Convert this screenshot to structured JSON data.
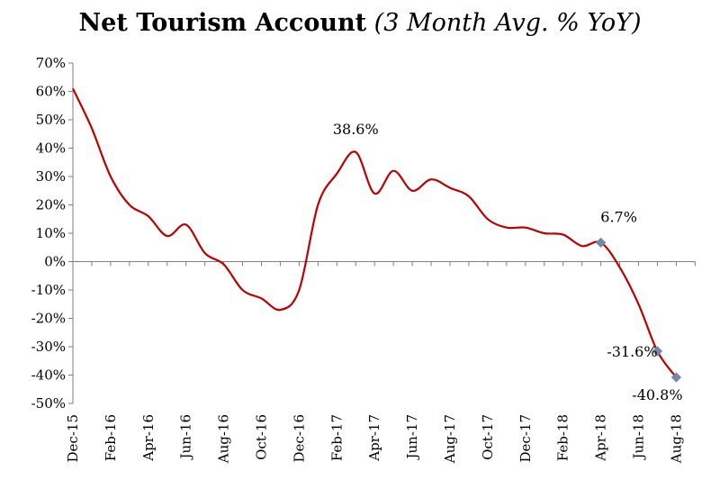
{
  "chart_data": {
    "type": "line",
    "title": "Net Tourism Account",
    "subtitle": "(3 Month Avg. % YoY)",
    "xlabel": "",
    "ylabel": "",
    "ylim": [
      -50,
      70
    ],
    "yticks": [
      -50,
      -40,
      -30,
      -20,
      -10,
      0,
      10,
      20,
      30,
      40,
      50,
      60,
      70
    ],
    "ytick_labels": [
      "-50%",
      "-40%",
      "-30%",
      "-20%",
      "-10%",
      "0%",
      "10%",
      "20%",
      "30%",
      "40%",
      "50%",
      "60%",
      "70%"
    ],
    "grid": false,
    "line_color": "#c00000",
    "marker_color": "#6d8aa8",
    "x_labels": [
      "Dec-15",
      "Feb-16",
      "Apr-16",
      "Jun-16",
      "Aug-16",
      "Oct-16",
      "Dec-16",
      "Feb-17",
      "Apr-17",
      "Jun-17",
      "Aug-17",
      "Oct-17",
      "Dec-17",
      "Feb-18",
      "Apr-18",
      "Jun-18",
      "Aug-18"
    ],
    "label_index": [
      0,
      2,
      4,
      6,
      8,
      10,
      12,
      14,
      16,
      18,
      20,
      22,
      24,
      26,
      28,
      30,
      32
    ],
    "series": [
      {
        "name": "Net Tourism Account",
        "x": [
          0,
          1,
          2,
          3,
          4,
          5,
          6,
          7,
          8,
          9,
          10,
          11,
          12,
          13,
          14,
          15,
          16,
          17,
          18,
          19,
          20,
          21,
          22,
          23,
          24,
          25,
          26,
          27,
          28,
          29,
          30,
          31,
          32,
          33
        ],
        "values": [
          61,
          47,
          30,
          20,
          16,
          9,
          13,
          3,
          -1,
          -10,
          -13,
          -17,
          -10,
          20,
          31,
          38.6,
          24,
          32,
          25,
          29,
          26,
          23,
          15,
          12,
          12,
          10,
          9.5,
          5.5,
          6.7,
          -2,
          -15,
          -31.6,
          -40.8,
          null
        ]
      }
    ],
    "annotations": [
      {
        "label": "38.6%",
        "x": 15,
        "value": 38.6,
        "marker": false
      },
      {
        "label": "6.7%",
        "x": 28,
        "value": 6.7,
        "marker": true
      },
      {
        "label": "-31.6%",
        "x": 31,
        "value": -31.6,
        "marker": true
      },
      {
        "label": "-40.8%",
        "x": 32,
        "value": -40.8,
        "marker": true
      }
    ]
  }
}
